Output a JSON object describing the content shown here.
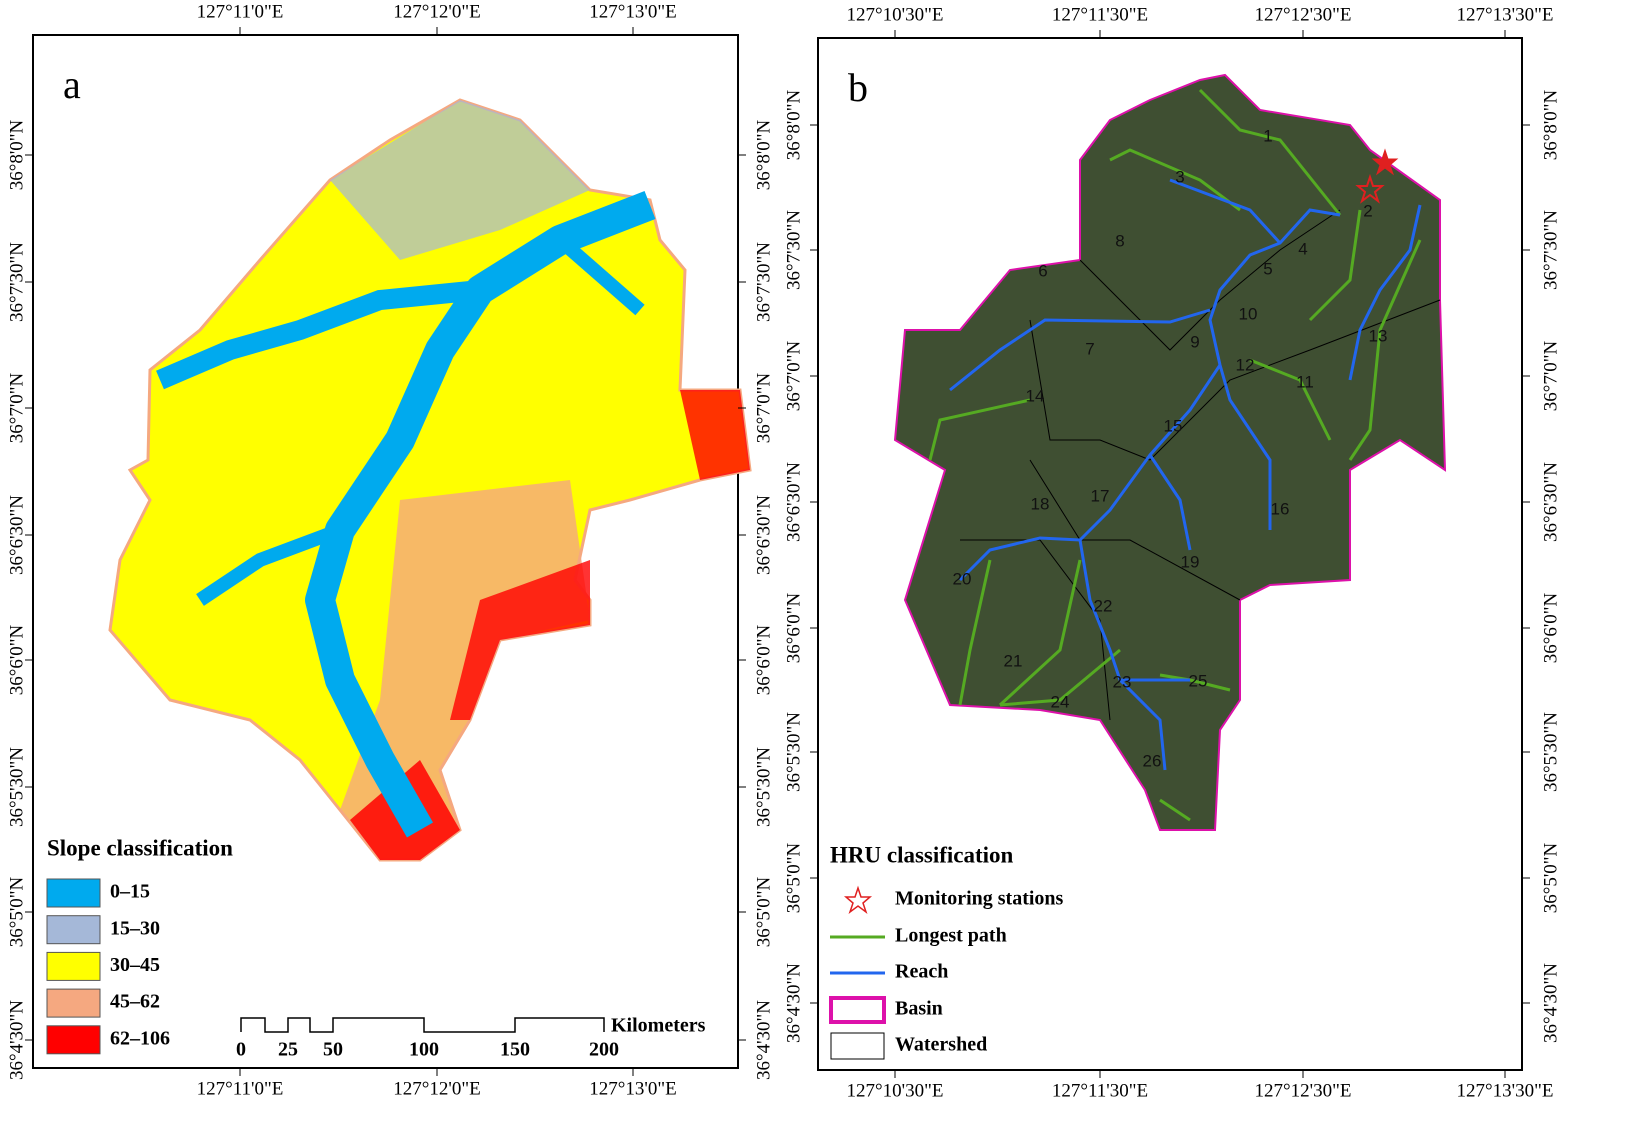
{
  "panels": [
    {
      "label": "a",
      "top_ticks": [
        "127°11'0\"E",
        "127°12'0\"E",
        "127°13'0\"E"
      ],
      "bottom_ticks": [
        "127°11'0\"E",
        "127°12'0\"E",
        "127°13'0\"E"
      ],
      "left_ticks": [
        "36°8'0\"N",
        "36°7'30\"N",
        "36°7'0\"N",
        "36°6'30\"N",
        "36°6'0\"N",
        "36°5'30\"N",
        "36°5'0\"N",
        "36°4'30\"N"
      ],
      "right_ticks": [
        "36°8'0\"N",
        "36°7'30\"N",
        "36°7'0\"N",
        "36°6'30\"N",
        "36°6'0\"N",
        "36°5'30\"N",
        "36°5'0\"N",
        "36°4'30\"N"
      ],
      "legend": {
        "title": "Slope classification",
        "items": [
          "0–15",
          "15–30",
          "30–45",
          "45–62",
          "62–106"
        ]
      },
      "scale_bar": {
        "labels": [
          "0",
          "25",
          "50",
          "100",
          "150",
          "200"
        ],
        "unit": "Kilometers"
      }
    },
    {
      "label": "b",
      "top_ticks": [
        "127°10'30\"E",
        "127°11'30\"E",
        "127°12'30\"E",
        "127°13'30\"E"
      ],
      "bottom_ticks": [
        "127°10'30\"E",
        "127°11'30\"E",
        "127°12'30\"E",
        "127°13'30\"E"
      ],
      "left_ticks": [
        "36°8'0\"N",
        "36°7'30\"N",
        "36°7'0\"N",
        "36°6'30\"N",
        "36°6'0\"N",
        "36°5'30\"N",
        "36°5'0\"N",
        "36°4'30\"N"
      ],
      "right_ticks": [
        "36°8'0\"N",
        "36°7'30\"N",
        "36°7'0\"N",
        "36°6'30\"N",
        "36°6'0\"N",
        "36°5'30\"N",
        "36°5'0\"N",
        "36°4'30\"N"
      ],
      "legend": {
        "title": "HRU classification",
        "items": [
          "Monitoring stations",
          "Longest path",
          "Reach",
          "Basin",
          "Watershed"
        ]
      },
      "subbasins": [
        "1",
        "2",
        "3",
        "4",
        "5",
        "6",
        "7",
        "8",
        "9",
        "10",
        "11",
        "12",
        "13",
        "14",
        "15",
        "16",
        "17",
        "18",
        "19",
        "20",
        "21",
        "22",
        "23",
        "24",
        "25",
        "26"
      ]
    }
  ]
}
